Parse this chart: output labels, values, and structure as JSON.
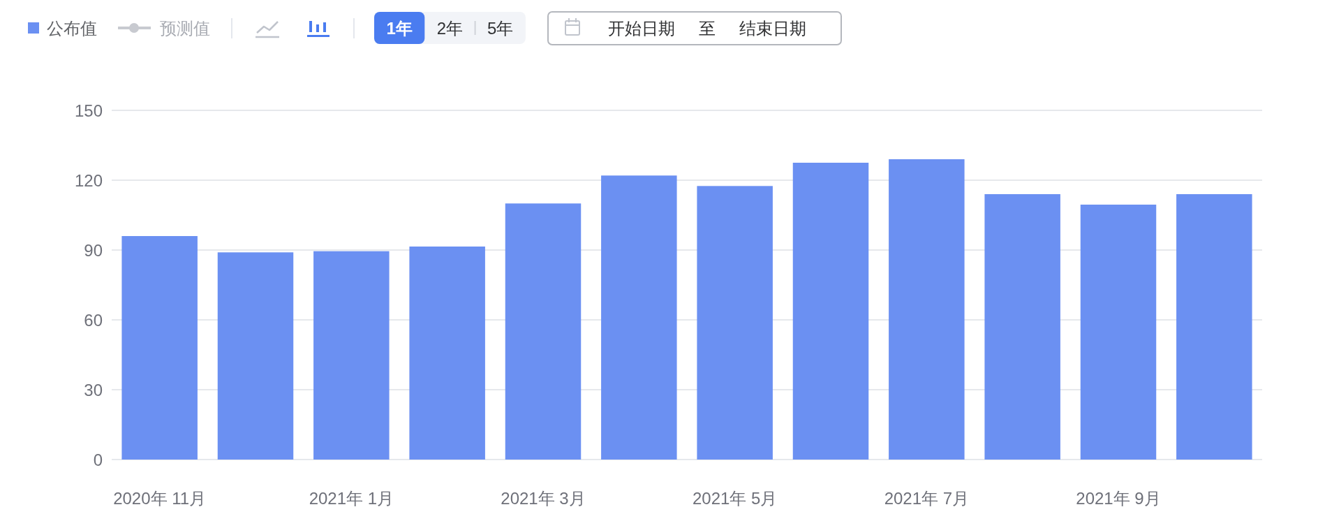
{
  "chart_data": {
    "type": "bar",
    "categories": [
      "2020年 11月",
      null,
      "2021年 1月",
      null,
      "2021年 3月",
      null,
      "2021年 5月",
      null,
      "2021年 7月",
      null,
      "2021年 9月",
      null
    ],
    "series": [
      {
        "name": "公布值",
        "color": "#6b90f2",
        "values": [
          96,
          89,
          89.5,
          91.5,
          110,
          122,
          117.5,
          127.5,
          129,
          114,
          109.5,
          114
        ]
      },
      {
        "name": "预测值",
        "type": "line",
        "marker": "circle",
        "color": "#c8cad0",
        "values": [
          null,
          null,
          null,
          null,
          null,
          null,
          null,
          null,
          null,
          null,
          null,
          null
        ]
      }
    ],
    "ylim": [
      0,
      150
    ],
    "yticks": [
      0,
      30,
      60,
      90,
      120,
      150
    ],
    "grid": "y",
    "legend": "top left",
    "annotations": [
      "1年",
      "2年",
      "5年",
      "开始日期",
      "至",
      "结束日期"
    ]
  }
}
